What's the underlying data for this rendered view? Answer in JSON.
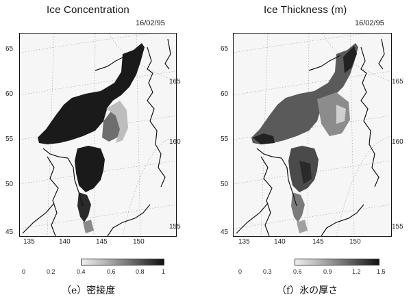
{
  "left": {
    "title": "Ice Concentration",
    "date": "16/02/95",
    "lat_ticks": [
      "65",
      "60",
      "55",
      "50",
      "45"
    ],
    "lon_ticks": [
      "135",
      "140",
      "145",
      "150"
    ],
    "right_ticks": [
      "165",
      "160",
      "155"
    ],
    "colorbar_labels": [
      "0",
      "0.2",
      "0.4",
      "0.6",
      "0.8",
      "1"
    ],
    "caption": "（e）密接度"
  },
  "right": {
    "title": "Ice Thickness (m)",
    "date": "16/02/95",
    "lat_ticks": [
      "65",
      "60",
      "55",
      "50",
      "45"
    ],
    "lon_ticks": [
      "135",
      "140",
      "145",
      "150"
    ],
    "right_ticks": [
      "165",
      "160",
      "155"
    ],
    "colorbar_labels": [
      "0",
      "0.3",
      "0.6",
      "0.9",
      "1.2",
      "1.5"
    ],
    "caption": "（f）氷の厚さ"
  },
  "colors": {
    "ice_dark": "#1a1a1a",
    "ice_mid": "#6e6e6e",
    "ice_light": "#bdbdbd",
    "land_outline": "#111111"
  }
}
